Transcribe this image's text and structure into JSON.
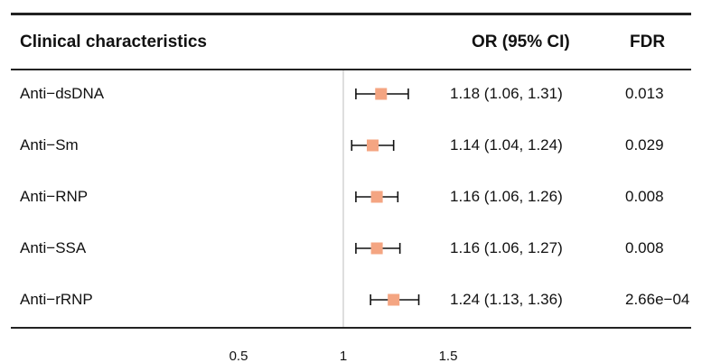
{
  "header": {
    "col_characteristic": "Clinical characteristics",
    "col_or": "OR (95% CI)",
    "col_fdr": "FDR"
  },
  "rows": [
    {
      "label": "Anti−dsDNA",
      "or_ci": "1.18 (1.06, 1.31)",
      "fdr": "0.013"
    },
    {
      "label": "Anti−Sm",
      "or_ci": "1.14 (1.04, 1.24)",
      "fdr": "0.029"
    },
    {
      "label": "Anti−RNP",
      "or_ci": "1.16 (1.06, 1.26)",
      "fdr": "0.008"
    },
    {
      "label": "Anti−SSA",
      "or_ci": "1.16 (1.06, 1.27)",
      "fdr": "0.008"
    },
    {
      "label": "Anti−rRNP",
      "or_ci": "1.24 (1.13, 1.36)",
      "fdr": "2.66e−04"
    }
  ],
  "chart_data": {
    "type": "forest",
    "categories": [
      "Anti−dsDNA",
      "Anti−Sm",
      "Anti−RNP",
      "Anti−SSA",
      "Anti−rRNP"
    ],
    "estimate": [
      1.18,
      1.14,
      1.16,
      1.16,
      1.24
    ],
    "ci_low": [
      1.06,
      1.04,
      1.06,
      1.06,
      1.13
    ],
    "ci_high": [
      1.31,
      1.24,
      1.26,
      1.27,
      1.36
    ],
    "reference_line": 1,
    "xticks": [
      "0.5",
      "1",
      "1.5"
    ],
    "marker_color": "#f4a582",
    "grid": false
  }
}
